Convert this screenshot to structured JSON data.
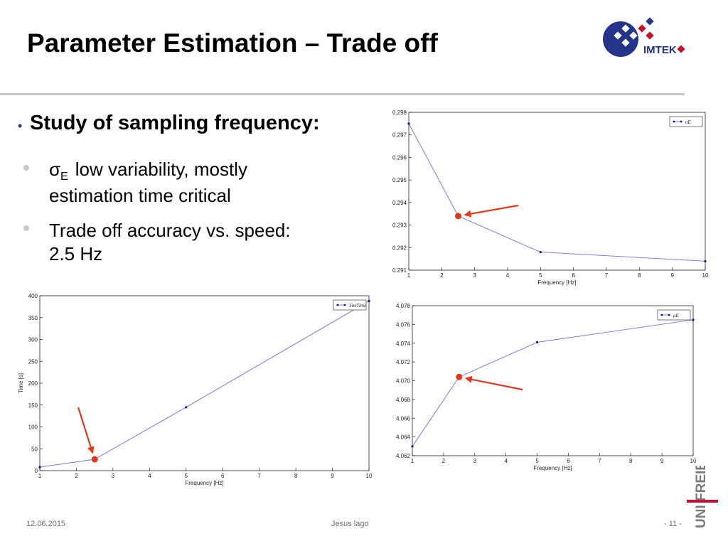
{
  "slide": {
    "title": "Parameter Estimation – Trade off",
    "bullet_main": "Study of sampling frequency:",
    "sub1_symbol": "σ",
    "sub1_subscript": "E",
    "sub1_line1": "low variability, mostly",
    "sub1_line2": "estimation time critical",
    "sub2_line1": "Trade off accuracy vs. speed:",
    "sub2_line2": "2.5 Hz",
    "footer_date": "12.06.2015",
    "footer_author": "Jesus lago",
    "footer_page": "- 11 -",
    "logo_text": "IMTEK",
    "uni_logo_text": "UNI FREIBURG"
  },
  "colors": {
    "line": "#6f6fe6",
    "marker": "#1010a0",
    "highlight": "#e03a1e",
    "logo_blue": "#24348a",
    "logo_red": "#c8102e"
  },
  "chart_data": [
    {
      "id": "sigma",
      "type": "line",
      "xlabel": "Frequency [Hz]",
      "ylabel": "",
      "xlim": [
        1,
        10
      ],
      "ylim": [
        0.291,
        0.298
      ],
      "xticks": [
        "1",
        "2",
        "3",
        "4",
        "5",
        "6",
        "7",
        "8",
        "9",
        "10"
      ],
      "yticks": [
        "0.291",
        "0.292",
        "0.293",
        "0.294",
        "0.295",
        "0.296",
        "0.297",
        "0.298"
      ],
      "series": [
        {
          "name": "σE",
          "x": [
            1,
            2.5,
            5,
            10
          ],
          "y": [
            0.2975,
            0.2934,
            0.2918,
            0.2914
          ]
        }
      ],
      "legend": "top-right",
      "highlight": {
        "x": 2.5,
        "y": 0.2934
      }
    },
    {
      "id": "simtime",
      "type": "line",
      "xlabel": "Frequency [Hz]",
      "ylabel": "Time [s]",
      "xlim": [
        1,
        10
      ],
      "ylim": [
        0,
        400
      ],
      "xticks": [
        "1",
        "2",
        "3",
        "4",
        "5",
        "6",
        "7",
        "8",
        "9",
        "10"
      ],
      "yticks": [
        "0",
        "50",
        "100",
        "150",
        "200",
        "250",
        "300",
        "350",
        "400"
      ],
      "series": [
        {
          "name": "SimTime",
          "x": [
            1,
            2.5,
            5,
            10
          ],
          "y": [
            8,
            26,
            145,
            388
          ]
        }
      ],
      "legend": "top-right",
      "highlight": {
        "x": 2.5,
        "y": 26
      }
    },
    {
      "id": "mu",
      "type": "line",
      "xlabel": "Frequency [Hz]",
      "ylabel": "",
      "xlim": [
        1,
        10
      ],
      "ylim": [
        4.062,
        4.078
      ],
      "xticks": [
        "1",
        "2",
        "3",
        "4",
        "5",
        "6",
        "7",
        "8",
        "9",
        "10"
      ],
      "yticks": [
        "4.062",
        "4.064",
        "4.066",
        "4.068",
        "4.070",
        "4.072",
        "4.074",
        "4.076",
        "4.078"
      ],
      "series": [
        {
          "name": "μE",
          "x": [
            1,
            2.5,
            5,
            10
          ],
          "y": [
            4.063,
            4.0704,
            4.0741,
            4.0765
          ]
        }
      ],
      "legend": "top-right",
      "highlight": {
        "x": 2.5,
        "y": 4.0704
      }
    }
  ]
}
